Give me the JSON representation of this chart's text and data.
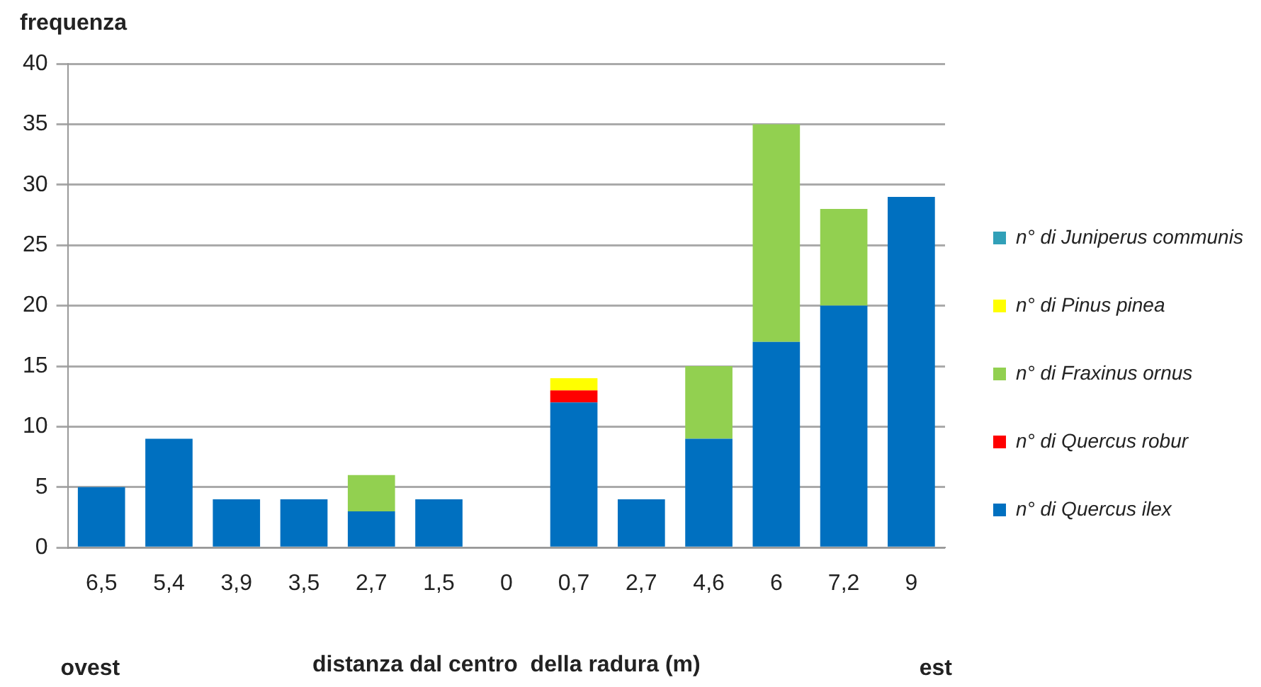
{
  "chart_data": {
    "type": "bar",
    "stacked": true,
    "ylabel": "frequenza",
    "xlabel": "distanza dal centro  della radura (m)",
    "annotations": [
      "ovest",
      "est"
    ],
    "categories": [
      "6,5",
      "5,4",
      "3,9",
      "3,5",
      "2,7",
      "1,5",
      "0",
      "0,7",
      "2,7",
      "4,6",
      "6",
      "7,2",
      "9"
    ],
    "series": [
      {
        "name": "n° di Quercus ilex",
        "color": "#0070c0",
        "values": [
          5,
          9,
          4,
          4,
          3,
          4,
          0,
          12,
          4,
          9,
          17,
          20,
          29
        ]
      },
      {
        "name": "n° di Quercus robur",
        "color": "#ff0000",
        "values": [
          0,
          0,
          0,
          0,
          0,
          0,
          0,
          1,
          0,
          0,
          0,
          0,
          0
        ]
      },
      {
        "name": "n° di Fraxinus ornus",
        "color": "#92d050",
        "values": [
          0,
          0,
          0,
          0,
          3,
          0,
          0,
          0,
          0,
          6,
          18,
          8,
          0
        ]
      },
      {
        "name": "n° di Pinus pinea",
        "color": "#ffff00",
        "values": [
          0,
          0,
          0,
          0,
          0,
          0,
          0,
          1,
          0,
          0,
          0,
          0,
          0
        ]
      },
      {
        "name": "n° di Juniperus communis",
        "color": "#31a0b8",
        "values": [
          0,
          0,
          0,
          0,
          0,
          0,
          0,
          0,
          0,
          0,
          0,
          0,
          0
        ]
      }
    ],
    "ylim": [
      0,
      40
    ],
    "yticks": [
      0,
      5,
      10,
      15,
      20,
      25,
      30,
      35,
      40
    ],
    "grid": "y",
    "legend": "right"
  }
}
